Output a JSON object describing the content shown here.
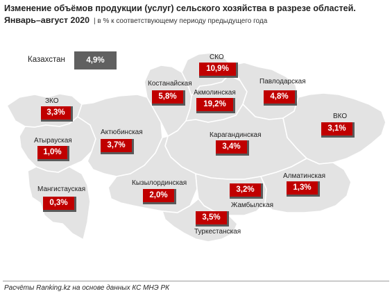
{
  "title": "Изменение объёмов продукции (услуг) сельского хозяйства в разрезе областей.",
  "period": "Январь–август 2020",
  "note": "| в % к соответствующему периоду предыдущего года",
  "country": {
    "name": "Казахстан",
    "value": "4,9%"
  },
  "colors": {
    "badge": "#c00000",
    "country_badge": "#606060",
    "map_fill": "#e3e3e3",
    "border": "#ffffff"
  },
  "regions": [
    {
      "id": "zko",
      "name": "ЗКО",
      "value": "3,3%"
    },
    {
      "id": "atyrau",
      "name": "Атырауская",
      "value": "1,0%"
    },
    {
      "id": "mangistau",
      "name": "Мангистауская",
      "value": "0,3%"
    },
    {
      "id": "aktobe",
      "name": "Актюбинская",
      "value": "3,7%"
    },
    {
      "id": "kostanay",
      "name": "Костанайская",
      "value": "5,8%"
    },
    {
      "id": "sko",
      "name": "СКО",
      "value": "10,9%"
    },
    {
      "id": "akmola",
      "name": "Акмолинская",
      "value": "19,2%"
    },
    {
      "id": "pavlodar",
      "name": "Павлодарская",
      "value": "4,8%"
    },
    {
      "id": "vko",
      "name": "ВКО",
      "value": "3,1%"
    },
    {
      "id": "karaganda",
      "name": "Карагандинская",
      "value": "3,4%"
    },
    {
      "id": "kyzylorda",
      "name": "Кызылординская",
      "value": "2,0%"
    },
    {
      "id": "almaty",
      "name": "Алматинская",
      "value": "1,3%"
    },
    {
      "id": "zhambyl",
      "name": "Жамбылская",
      "value": "3,2%"
    },
    {
      "id": "turkestan",
      "name": "Туркестанская",
      "value": "3,5%"
    }
  ],
  "footer": "Расчёты Ranking.kz на основе данных КС МНЭ РК"
}
